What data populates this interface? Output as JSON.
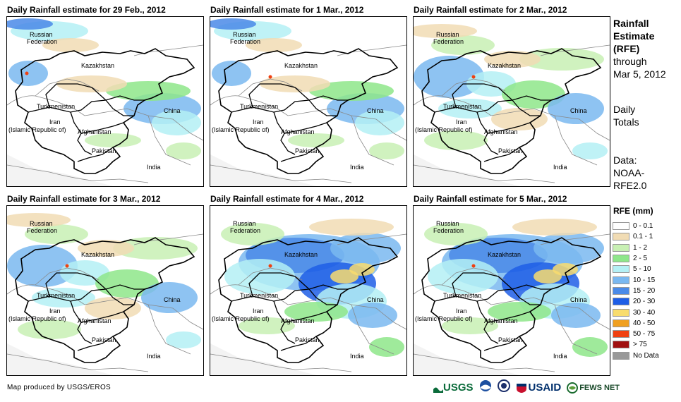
{
  "panels": [
    {
      "title": "Daily Rainfall estimate for 29 Feb., 2012",
      "intensity": 1
    },
    {
      "title": "Daily Rainfall estimate for 1 Mar., 2012",
      "intensity": 1
    },
    {
      "title": "Daily Rainfall estimate for 2 Mar., 2012",
      "intensity": 2
    },
    {
      "title": "Daily Rainfall estimate for 3 Mar., 2012",
      "intensity": 2
    },
    {
      "title": "Daily Rainfall estimate for 4 Mar., 2012",
      "intensity": 3
    },
    {
      "title": "Daily Rainfall estimate for 5 Mar., 2012",
      "intensity": 3
    }
  ],
  "map_labels": {
    "russia_1": "Russian",
    "russia_2": "Federation",
    "kazakhstan": "Kazakhstan",
    "turkmenistan": "Turkmenistan",
    "iran_1": "Iran",
    "iran_2": "(Islamic Republic of)",
    "afghanistan": "Afghanistan",
    "pakistan": "Pakistan",
    "india": "India",
    "china": "China"
  },
  "side": {
    "heading_1": "Rainfall",
    "heading_2": "Estimate",
    "heading_3": "(RFE)",
    "through": "through",
    "date": "Mar 5, 2012",
    "daily_1": "Daily",
    "daily_2": "Totals",
    "data_1": "Data:",
    "data_2": "NOAA-",
    "data_3": "RFE2.0"
  },
  "legend": {
    "title": "RFE (mm)",
    "items": [
      {
        "label": "0 - 0.1",
        "color": "#ffffff"
      },
      {
        "label": "0.1 - 1",
        "color": "#f1dcb4"
      },
      {
        "label": "1 - 2",
        "color": "#c8f0b4"
      },
      {
        "label": "2 - 5",
        "color": "#8ee68a"
      },
      {
        "label": "5 - 10",
        "color": "#b4f0f5"
      },
      {
        "label": "10 - 15",
        "color": "#7ab8f0"
      },
      {
        "label": "15 - 20",
        "color": "#4a8ae8"
      },
      {
        "label": "20 - 30",
        "color": "#1e5ee6"
      },
      {
        "label": "30 - 40",
        "color": "#f8dc6e"
      },
      {
        "label": "40 - 50",
        "color": "#f0a020"
      },
      {
        "label": "50 - 75",
        "color": "#f04010"
      },
      {
        "label": "> 75",
        "color": "#a01010"
      },
      {
        "label": "No Data",
        "color": "#999999"
      }
    ]
  },
  "footer": "Map produced by USGS/EROS",
  "logos": {
    "usgs": "USGS",
    "usaid": "USAID",
    "fews": "FEWS NET"
  }
}
